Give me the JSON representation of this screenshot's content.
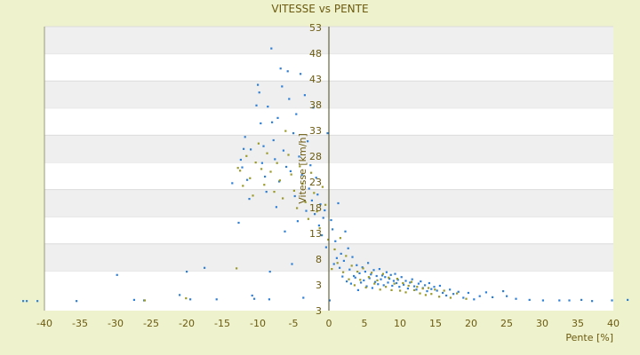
{
  "chart_data": {
    "type": "scatter",
    "title": "VITESSE vs PENTE",
    "xlabel": "Pente [%]",
    "ylabel": "Vitesse [km/h]",
    "xlim": [
      -40,
      40
    ],
    "ylim": [
      3,
      53
    ],
    "x_ticks": [
      "-40",
      "-35",
      "-30",
      "-25",
      "-20",
      "-15",
      "-10",
      "-5",
      "0",
      "5",
      "10",
      "15",
      "20",
      "25",
      "30",
      "35",
      "40"
    ],
    "y_ticks": [
      "3",
      "3",
      "8",
      "13",
      "18",
      "23",
      "28",
      "33",
      "38",
      "43",
      "48",
      "53"
    ],
    "grid": "horizontal alternating bands",
    "colors": {
      "series_a": "#2f7fd6",
      "series_b": "#9a9a2a",
      "axis": "#4a4a1a",
      "band": "#efefef"
    },
    "series": [
      {
        "color": "#2f7fd6",
        "points": [
          [
            -43.0,
            2.5
          ],
          [
            -42.5,
            2.5
          ],
          [
            -41.0,
            2.5
          ],
          [
            -35.5,
            2.5
          ],
          [
            -29.8,
            7.3
          ],
          [
            -27.4,
            2.7
          ],
          [
            -26.0,
            2.6
          ],
          [
            -21.0,
            3.6
          ],
          [
            -20.0,
            7.9
          ],
          [
            -19.5,
            2.8
          ],
          [
            -17.5,
            8.6
          ],
          [
            -15.8,
            2.8
          ],
          [
            -13.6,
            24.2
          ],
          [
            -12.7,
            16.9
          ],
          [
            -12.4,
            28.5
          ],
          [
            -12.2,
            27.1
          ],
          [
            -12.0,
            30.5
          ],
          [
            -11.8,
            32.7
          ],
          [
            -11.5,
            24.8
          ],
          [
            -11.2,
            21.3
          ],
          [
            -11.0,
            30.4
          ],
          [
            -10.8,
            3.5
          ],
          [
            -10.5,
            2.9
          ],
          [
            -10.2,
            38.5
          ],
          [
            -10.0,
            42.3
          ],
          [
            -9.8,
            40.9
          ],
          [
            -9.6,
            35.2
          ],
          [
            -9.4,
            27.9
          ],
          [
            -9.2,
            31.0
          ],
          [
            -9.0,
            25.4
          ],
          [
            -8.8,
            22.6
          ],
          [
            -8.6,
            38.3
          ],
          [
            -8.4,
            2.8
          ],
          [
            -8.3,
            7.9
          ],
          [
            -8.1,
            49.0
          ],
          [
            -8.0,
            35.4
          ],
          [
            -7.8,
            32.1
          ],
          [
            -7.6,
            28.6
          ],
          [
            -7.4,
            19.8
          ],
          [
            -7.2,
            36.2
          ],
          [
            -7.0,
            24.5
          ],
          [
            -6.8,
            45.3
          ],
          [
            -6.6,
            42.0
          ],
          [
            -6.4,
            30.2
          ],
          [
            -6.2,
            15.3
          ],
          [
            -6.0,
            27.2
          ],
          [
            -5.8,
            44.8
          ],
          [
            -5.6,
            39.7
          ],
          [
            -5.4,
            26.4
          ],
          [
            -5.2,
            9.3
          ],
          [
            -5.0,
            33.4
          ],
          [
            -4.8,
            21.8
          ],
          [
            -4.6,
            36.9
          ],
          [
            -4.4,
            17.2
          ],
          [
            -4.2,
            29.1
          ],
          [
            -4.0,
            44.3
          ],
          [
            -3.8,
            25.7
          ],
          [
            -3.6,
            3.1
          ],
          [
            -3.4,
            40.4
          ],
          [
            -3.2,
            19.1
          ],
          [
            -3.0,
            31.9
          ],
          [
            -2.8,
            23.2
          ],
          [
            -2.6,
            27.5
          ],
          [
            -2.4,
            21.0
          ],
          [
            -2.2,
            38.1
          ],
          [
            -2.0,
            18.5
          ],
          [
            -1.8,
            25.2
          ],
          [
            -1.6,
            22.1
          ],
          [
            -1.4,
            16.4
          ],
          [
            -1.2,
            20.3
          ],
          [
            -1.0,
            14.6
          ],
          [
            -0.8,
            17.8
          ],
          [
            -0.6,
            19.2
          ],
          [
            -0.4,
            12.4
          ],
          [
            -0.2,
            33.4
          ],
          [
            0.1,
            2.6
          ],
          [
            0.3,
            17.4
          ],
          [
            0.5,
            15.7
          ],
          [
            0.7,
            9.3
          ],
          [
            0.9,
            13.5
          ],
          [
            1.1,
            10.4
          ],
          [
            1.3,
            20.5
          ],
          [
            1.5,
            8.6
          ],
          [
            1.7,
            11.2
          ],
          [
            1.9,
            7.0
          ],
          [
            2.1,
            9.9
          ],
          [
            2.3,
            15.3
          ],
          [
            2.5,
            6.1
          ],
          [
            2.7,
            12.2
          ],
          [
            2.9,
            8.3
          ],
          [
            3.1,
            5.7
          ],
          [
            3.3,
            10.6
          ],
          [
            3.5,
            7.1
          ],
          [
            3.7,
            6.8
          ],
          [
            3.9,
            9.1
          ],
          [
            4.1,
            4.5
          ],
          [
            4.3,
            7.6
          ],
          [
            4.5,
            5.9
          ],
          [
            4.7,
            8.7
          ],
          [
            4.9,
            6.3
          ],
          [
            5.1,
            7.9
          ],
          [
            5.3,
            5.2
          ],
          [
            5.5,
            9.5
          ],
          [
            5.7,
            6.7
          ],
          [
            5.9,
            7.4
          ],
          [
            6.1,
            4.9
          ],
          [
            6.3,
            8.2
          ],
          [
            6.5,
            6.0
          ],
          [
            6.7,
            7.1
          ],
          [
            6.9,
            5.6
          ],
          [
            7.1,
            8.4
          ],
          [
            7.3,
            6.5
          ],
          [
            7.5,
            7.2
          ],
          [
            7.7,
            5.4
          ],
          [
            7.9,
            6.9
          ],
          [
            8.1,
            7.8
          ],
          [
            8.3,
            5.9
          ],
          [
            8.5,
            6.6
          ],
          [
            8.7,
            7.3
          ],
          [
            8.9,
            5.3
          ],
          [
            9.1,
            6.2
          ],
          [
            9.3,
            7.5
          ],
          [
            9.5,
            5.8
          ],
          [
            9.7,
            6.4
          ],
          [
            9.9,
            5.1
          ],
          [
            10.2,
            6.9
          ],
          [
            10.5,
            5.5
          ],
          [
            10.8,
            6.2
          ],
          [
            11.1,
            4.8
          ],
          [
            11.4,
            5.9
          ],
          [
            11.7,
            6.5
          ],
          [
            12.0,
            5.2
          ],
          [
            12.3,
            4.6
          ],
          [
            12.6,
            5.7
          ],
          [
            12.9,
            6.1
          ],
          [
            13.2,
            4.9
          ],
          [
            13.5,
            5.4
          ],
          [
            13.8,
            4.3
          ],
          [
            14.1,
            5.8
          ],
          [
            14.4,
            4.7
          ],
          [
            14.8,
            5.1
          ],
          [
            15.2,
            4.4
          ],
          [
            15.6,
            5.3
          ],
          [
            16.0,
            4.0
          ],
          [
            16.5,
            3.5
          ],
          [
            17.0,
            4.6
          ],
          [
            17.5,
            3.8
          ],
          [
            18.2,
            4.2
          ],
          [
            18.9,
            3.1
          ],
          [
            19.6,
            4.0
          ],
          [
            20.4,
            2.8
          ],
          [
            21.2,
            3.4
          ],
          [
            22.1,
            4.1
          ],
          [
            23.0,
            3.2
          ],
          [
            24.5,
            4.3
          ],
          [
            25.0,
            3.4
          ],
          [
            26.3,
            2.9
          ],
          [
            28.2,
            2.7
          ],
          [
            30.1,
            2.6
          ],
          [
            32.4,
            2.6
          ],
          [
            33.8,
            2.6
          ],
          [
            35.5,
            2.7
          ],
          [
            37.0,
            2.5
          ],
          [
            39.8,
            2.6
          ],
          [
            42.0,
            2.7
          ]
        ]
      },
      {
        "color": "#9a9a2a",
        "points": [
          [
            -25.9,
            2.6
          ],
          [
            -20.1,
            3.0
          ],
          [
            -13.0,
            8.5
          ],
          [
            -12.8,
            27.0
          ],
          [
            -12.5,
            26.5
          ],
          [
            -12.1,
            23.7
          ],
          [
            -11.6,
            29.2
          ],
          [
            -11.1,
            25.1
          ],
          [
            -10.7,
            21.9
          ],
          [
            -10.3,
            28.0
          ],
          [
            -9.9,
            31.5
          ],
          [
            -9.5,
            26.8
          ],
          [
            -9.1,
            23.9
          ],
          [
            -8.7,
            29.7
          ],
          [
            -8.2,
            26.3
          ],
          [
            -7.7,
            22.6
          ],
          [
            -7.3,
            27.9
          ],
          [
            -6.9,
            24.7
          ],
          [
            -6.5,
            21.4
          ],
          [
            -6.1,
            33.8
          ],
          [
            -5.7,
            29.4
          ],
          [
            -5.3,
            25.8
          ],
          [
            -4.9,
            22.8
          ],
          [
            -4.5,
            19.6
          ],
          [
            -4.1,
            27.3
          ],
          [
            -3.7,
            24.1
          ],
          [
            -3.3,
            20.7
          ],
          [
            -2.9,
            17.6
          ],
          [
            -2.5,
            26.1
          ],
          [
            -2.1,
            22.4
          ],
          [
            -1.7,
            19.0
          ],
          [
            -1.3,
            15.9
          ],
          [
            -0.9,
            23.5
          ],
          [
            -0.5,
            20.2
          ],
          [
            -0.1,
            13.8
          ],
          [
            0.4,
            8.4
          ],
          [
            0.8,
            12.0
          ],
          [
            1.2,
            9.5
          ],
          [
            1.6,
            14.1
          ],
          [
            2.0,
            7.8
          ],
          [
            2.4,
            10.8
          ],
          [
            2.8,
            6.5
          ],
          [
            3.2,
            9.0
          ],
          [
            3.6,
            5.4
          ],
          [
            4.0,
            7.9
          ],
          [
            4.4,
            6.4
          ],
          [
            4.8,
            8.5
          ],
          [
            5.2,
            5.0
          ],
          [
            5.6,
            6.9
          ],
          [
            6.0,
            7.7
          ],
          [
            6.4,
            5.7
          ],
          [
            6.8,
            6.3
          ],
          [
            7.2,
            4.6
          ],
          [
            7.6,
            7.5
          ],
          [
            8.0,
            5.1
          ],
          [
            8.4,
            6.8
          ],
          [
            8.8,
            4.5
          ],
          [
            9.2,
            5.7
          ],
          [
            9.6,
            6.6
          ],
          [
            10.0,
            4.4
          ],
          [
            10.4,
            5.8
          ],
          [
            10.8,
            4.1
          ],
          [
            11.2,
            5.3
          ],
          [
            11.6,
            6.0
          ],
          [
            12.0,
            4.5
          ],
          [
            12.4,
            5.1
          ],
          [
            12.8,
            3.9
          ],
          [
            13.2,
            4.8
          ],
          [
            13.6,
            3.6
          ],
          [
            14.0,
            4.9
          ],
          [
            14.4,
            3.8
          ],
          [
            14.9,
            4.6
          ],
          [
            15.5,
            3.3
          ],
          [
            16.2,
            4.4
          ],
          [
            17.1,
            3.1
          ],
          [
            18.0,
            3.9
          ],
          [
            19.3,
            2.9
          ]
        ]
      }
    ]
  }
}
